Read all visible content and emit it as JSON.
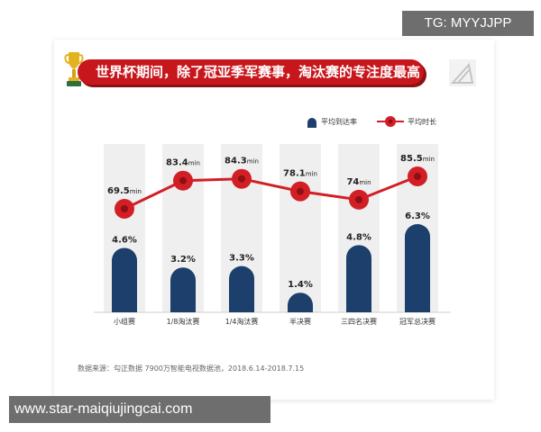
{
  "banner": {
    "title": "世界杯期间，除了冠亚季军赛事，淘汰赛的专注度最高"
  },
  "legend": {
    "bar_label": "平均到达率",
    "line_label": "平均时长"
  },
  "source": "数据来源：勾正数据 7900万智能电视数据池，2018.6.14-2018.7.15",
  "watermarks": {
    "top": "TG: MYYJJPP",
    "bottom": "www.star-maiqiujingcai.com"
  },
  "colors": {
    "bar": "#1c3f6b",
    "line": "#d21f26",
    "banner": "#c8161d",
    "column_bg": "#efefef"
  },
  "chart_data": {
    "type": "bar",
    "categories": [
      "小组赛",
      "1/8淘汰赛",
      "1/4淘汰赛",
      "半决赛",
      "三四名决赛",
      "冠军总决赛"
    ],
    "series": [
      {
        "name": "平均到达率",
        "type": "bar",
        "values": [
          4.6,
          3.2,
          3.3,
          1.4,
          4.8,
          6.3
        ],
        "labels": [
          "4.6%",
          "3.2%",
          "3.3%",
          "1.4%",
          "4.8%",
          "6.3%"
        ]
      },
      {
        "name": "平均时长",
        "type": "line",
        "values": [
          69.5,
          83.4,
          84.3,
          78.1,
          74,
          85.5
        ],
        "labels": [
          "69.5",
          "83.4",
          "84.3",
          "78.1",
          "74",
          "85.5"
        ],
        "unit": "min"
      }
    ],
    "bar_ylim": [
      0,
      6.3
    ],
    "line_ylim": [
      69.5,
      85.5
    ]
  }
}
